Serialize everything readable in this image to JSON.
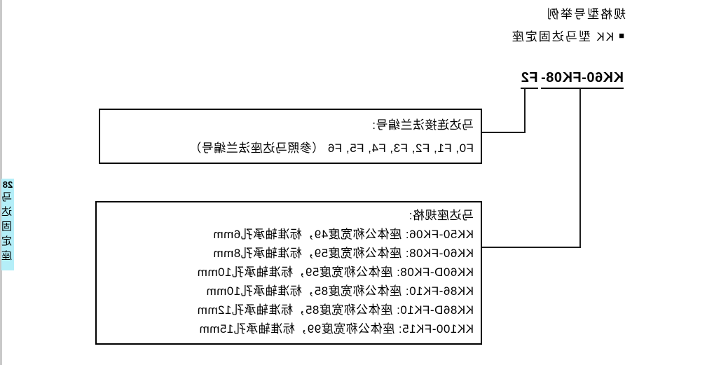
{
  "page": {
    "example_heading": "规格型号举例",
    "section_bullet_icon": "■",
    "section_title": "KK 型马达固定座",
    "model_number": {
      "full": "KK60-FK08-F2",
      "prefix": "KK60-FK08-",
      "suffix": "F2"
    }
  },
  "flange_box": {
    "title": "马达连接法兰编号:",
    "values": "F0, F1, F2, F3, F4, F5, F6 （参照马达座法兰编号）"
  },
  "spec_box": {
    "title": "马达座规格:",
    "lines": [
      "KK50-FK06: 座体公称宽度49，标准轴承孔6mm",
      "KK60-FK08: 座体公称宽度59，标准轴承孔8mm",
      "KK60D-FK08: 座体公称宽度59，标准轴承孔10mm",
      "KK86-FK10: 座体公称宽度85，标准轴承孔10mm",
      "KK86D-FK10: 座体公称宽度85，标准轴承孔12mm",
      "KK100-FK15: 座体公称宽度99，标准轴承孔15mm"
    ]
  },
  "side_tab": {
    "page_number": "28",
    "label": "马达固定座"
  },
  "colors": {
    "tab_highlight": "#b4eef8",
    "page_edge_strip": "#c9c9c9",
    "ink": "#000000"
  },
  "orientation_note": "page rendered horizontally mirrored"
}
